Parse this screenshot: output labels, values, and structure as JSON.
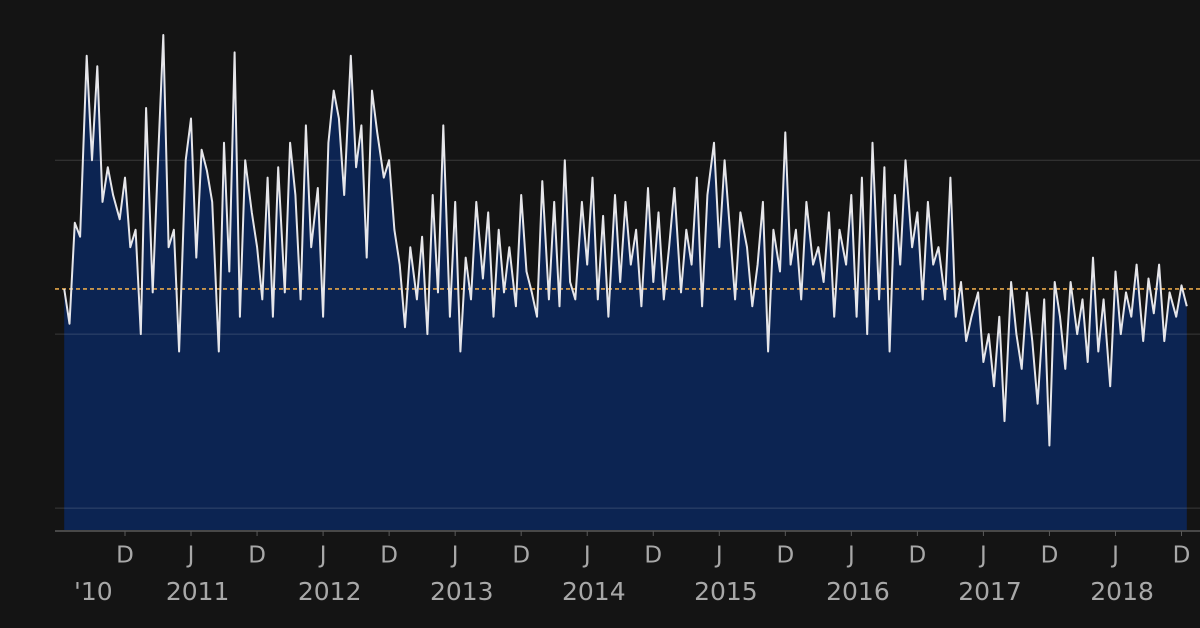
{
  "chart_data": {
    "type": "area",
    "line_color": "#e6e6ea",
    "fill_color": "#0c2452",
    "reference_line": 63,
    "reference_color": "#e5a64a",
    "grid": true,
    "gridlines": [
      0,
      50,
      100
    ],
    "xlim": [
      2010.39,
      2019.06
    ],
    "ylim": [
      -6.3,
      138
    ],
    "xticks": [
      {
        "value": 2010.92,
        "label": "D"
      },
      {
        "value": 2011.42,
        "label": "J"
      },
      {
        "value": 2011.92,
        "label": "D"
      },
      {
        "value": 2012.42,
        "label": "J"
      },
      {
        "value": 2012.92,
        "label": "D"
      },
      {
        "value": 2013.42,
        "label": "J"
      },
      {
        "value": 2013.92,
        "label": "D"
      },
      {
        "value": 2014.42,
        "label": "J"
      },
      {
        "value": 2014.92,
        "label": "D"
      },
      {
        "value": 2015.42,
        "label": "J"
      },
      {
        "value": 2015.92,
        "label": "D"
      },
      {
        "value": 2016.42,
        "label": "J"
      },
      {
        "value": 2016.92,
        "label": "D"
      },
      {
        "value": 2017.42,
        "label": "J"
      },
      {
        "value": 2017.92,
        "label": "D"
      },
      {
        "value": 2018.42,
        "label": "J"
      },
      {
        "value": 2018.92,
        "label": "D"
      }
    ],
    "year_ticks": [
      {
        "value": 2010.68,
        "label": "'10"
      },
      {
        "value": 2011.47,
        "label": "2011"
      },
      {
        "value": 2012.47,
        "label": "2012"
      },
      {
        "value": 2013.47,
        "label": "2013"
      },
      {
        "value": 2014.47,
        "label": "2014"
      },
      {
        "value": 2015.47,
        "label": "2015"
      },
      {
        "value": 2016.47,
        "label": "2016"
      },
      {
        "value": 2017.47,
        "label": "2017"
      },
      {
        "value": 2018.47,
        "label": "2018"
      }
    ],
    "x": [
      2010.46,
      2010.5,
      2010.54,
      2010.58,
      2010.63,
      2010.67,
      2010.71,
      2010.75,
      2010.79,
      2010.83,
      2010.88,
      2010.92,
      2010.96,
      2011.0,
      2011.04,
      2011.08,
      2011.13,
      2011.17,
      2011.21,
      2011.25,
      2011.29,
      2011.33,
      2011.38,
      2011.42,
      2011.46,
      2011.5,
      2011.54,
      2011.58,
      2011.63,
      2011.67,
      2011.71,
      2011.75,
      2011.79,
      2011.83,
      2011.88,
      2011.92,
      2011.96,
      2012.0,
      2012.04,
      2012.08,
      2012.13,
      2012.17,
      2012.21,
      2012.25,
      2012.29,
      2012.33,
      2012.38,
      2012.42,
      2012.46,
      2012.5,
      2012.54,
      2012.58,
      2012.63,
      2012.67,
      2012.71,
      2012.75,
      2012.79,
      2012.83,
      2012.88,
      2012.92,
      2012.96,
      2013.0,
      2013.04,
      2013.08,
      2013.13,
      2013.17,
      2013.21,
      2013.25,
      2013.29,
      2013.33,
      2013.38,
      2013.42,
      2013.46,
      2013.5,
      2013.54,
      2013.58,
      2013.63,
      2013.67,
      2013.71,
      2013.75,
      2013.79,
      2013.83,
      2013.88,
      2013.92,
      2013.96,
      2014.0,
      2014.04,
      2014.08,
      2014.13,
      2014.17,
      2014.21,
      2014.25,
      2014.29,
      2014.33,
      2014.38,
      2014.42,
      2014.46,
      2014.5,
      2014.54,
      2014.58,
      2014.63,
      2014.67,
      2014.71,
      2014.75,
      2014.79,
      2014.83,
      2014.88,
      2014.92,
      2014.96,
      2015.0,
      2015.04,
      2015.08,
      2015.13,
      2015.17,
      2015.21,
      2015.25,
      2015.29,
      2015.33,
      2015.38,
      2015.42,
      2015.46,
      2015.5,
      2015.54,
      2015.58,
      2015.63,
      2015.67,
      2015.71,
      2015.75,
      2015.79,
      2015.83,
      2015.88,
      2015.92,
      2015.96,
      2016.0,
      2016.04,
      2016.08,
      2016.13,
      2016.17,
      2016.21,
      2016.25,
      2016.29,
      2016.33,
      2016.38,
      2016.42,
      2016.46,
      2016.5,
      2016.54,
      2016.58,
      2016.63,
      2016.67,
      2016.71,
      2016.75,
      2016.79,
      2016.83,
      2016.88,
      2016.92,
      2016.96,
      2017.0,
      2017.04,
      2017.08,
      2017.13,
      2017.17,
      2017.21,
      2017.25,
      2017.29,
      2017.33,
      2017.38,
      2017.42,
      2017.46,
      2017.5,
      2017.54,
      2017.58,
      2017.63,
      2017.67,
      2017.71,
      2017.75,
      2017.79,
      2017.83,
      2017.88,
      2017.92,
      2017.96,
      2018.0,
      2018.04,
      2018.08,
      2018.13,
      2018.17,
      2018.21,
      2018.25,
      2018.29,
      2018.33,
      2018.38,
      2018.42,
      2018.46,
      2018.5,
      2018.54,
      2018.58,
      2018.63,
      2018.67,
      2018.71,
      2018.75,
      2018.79,
      2018.83,
      2018.88,
      2018.92,
      2018.96
    ],
    "values": [
      63,
      53,
      82,
      78,
      130,
      100,
      127,
      88,
      98,
      90,
      83,
      95,
      75,
      80,
      50,
      115,
      62,
      100,
      136,
      75,
      80,
      45,
      100,
      112,
      72,
      103,
      97,
      88,
      45,
      105,
      68,
      131,
      55,
      100,
      85,
      75,
      60,
      95,
      55,
      98,
      62,
      105,
      90,
      60,
      110,
      75,
      92,
      55,
      105,
      120,
      112,
      90,
      130,
      98,
      110,
      72,
      120,
      108,
      95,
      100,
      80,
      70,
      52,
      75,
      60,
      78,
      50,
      90,
      62,
      110,
      55,
      88,
      45,
      72,
      60,
      88,
      66,
      85,
      55,
      80,
      62,
      75,
      58,
      90,
      68,
      62,
      55,
      94,
      60,
      88,
      58,
      100,
      65,
      60,
      88,
      70,
      95,
      60,
      84,
      55,
      90,
      65,
      88,
      70,
      80,
      58,
      92,
      65,
      85,
      60,
      75,
      92,
      62,
      80,
      70,
      95,
      58,
      90,
      105,
      75,
      100,
      80,
      60,
      85,
      75,
      58,
      70,
      88,
      45,
      80,
      68,
      108,
      70,
      80,
      60,
      88,
      70,
      75,
      65,
      85,
      55,
      80,
      70,
      90,
      55,
      95,
      50,
      105,
      60,
      98,
      45,
      90,
      70,
      100,
      75,
      85,
      60,
      88,
      70,
      75,
      60,
      95,
      55,
      65,
      48,
      55,
      62,
      42,
      50,
      35,
      55,
      25,
      65,
      50,
      40,
      62,
      48,
      30,
      60,
      18,
      65,
      55,
      40,
      65,
      50,
      60,
      42,
      72,
      45,
      60,
      35,
      68,
      50,
      62,
      55,
      70,
      48,
      66,
      56,
      70,
      48,
      62,
      55,
      64,
      58
    ]
  }
}
